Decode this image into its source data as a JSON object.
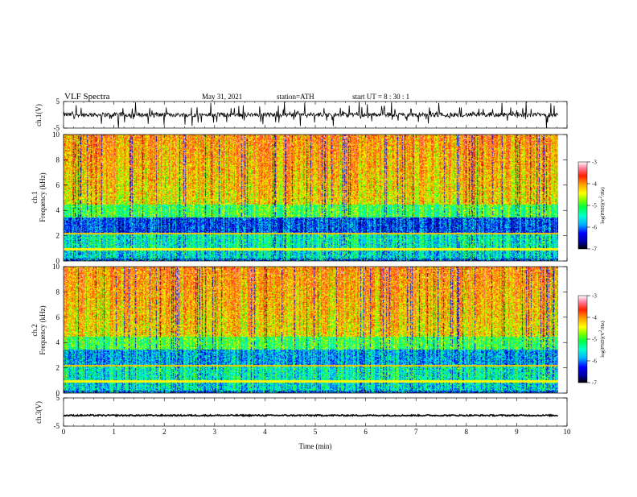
{
  "header": {
    "title": "VLF  Spectra",
    "date": "May 31, 2021",
    "station": "station=ATH",
    "start": "start  UT  =   8  : 30 : 1"
  },
  "colors": {
    "spectrum_scale": [
      "#000000",
      "#0000a0",
      "#0000ff",
      "#00b0ff",
      "#00ffd0",
      "#00ff40",
      "#80ff00",
      "#ffff00",
      "#ffa000",
      "#ff2000",
      "#ff80a0",
      "#ffffff"
    ]
  },
  "chart_data": [
    {
      "type": "line",
      "panel": "ch1-waveform",
      "ylabel": "ch.1(V)",
      "ylim": [
        -5,
        5
      ],
      "yticks": [
        "5",
        "-5"
      ],
      "xlim": [
        0,
        10
      ],
      "series": [
        {
          "values_note": "",
          "mean": 0,
          "amplitude_range": [
            -2.5,
            2.5
          ]
        }
      ]
    },
    {
      "type": "heatmap",
      "panel": "ch1-spectrogram",
      "ylabel": "ch.1\nFrequency  (kHz)",
      "ylim": [
        0,
        10
      ],
      "yticks": [
        "0",
        "2",
        "4",
        "6",
        "8",
        "10"
      ],
      "colorbar": {
        "label": "log(PSD)(V²/Hz)",
        "ticks": [
          "-3",
          "-4",
          "-5",
          "-6",
          "-7"
        ],
        "range": [
          -7,
          -3
        ]
      }
    },
    {
      "type": "heatmap",
      "panel": "ch2-spectrogram",
      "ylabel": "ch.2\nFrequency  (kHz)",
      "ylim": [
        0,
        10
      ],
      "yticks": [
        "0",
        "2",
        "4",
        "6",
        "8",
        "10"
      ],
      "colorbar": {
        "label": "log(PSD)(V²/Hz)",
        "ticks": [
          "-3",
          "-4",
          "-5",
          "-6",
          "-7"
        ],
        "range": [
          -7,
          -3
        ]
      }
    },
    {
      "type": "line",
      "panel": "ch3-waveform",
      "ylabel": "ch.3(V)",
      "ylim": [
        -5,
        5
      ],
      "yticks": [
        "5",
        "-5"
      ],
      "xlim": [
        0,
        10
      ],
      "series": [
        {
          "mean": -1.2,
          "amplitude_range": [
            -1.5,
            -0.9
          ]
        }
      ]
    }
  ],
  "xaxis": {
    "label": "Time  (min)",
    "ticks": [
      "0",
      "1",
      "2",
      "3",
      "4",
      "5",
      "6",
      "7",
      "8",
      "9",
      "10"
    ],
    "range": [
      0,
      10
    ]
  },
  "colorbar1": {
    "label_parts": [
      "log(PSD)(V",
      "2",
      "/Hz)"
    ]
  },
  "colorbar2": {
    "label_parts": [
      "log(PSD)(V",
      "2",
      "/Hz)"
    ]
  }
}
